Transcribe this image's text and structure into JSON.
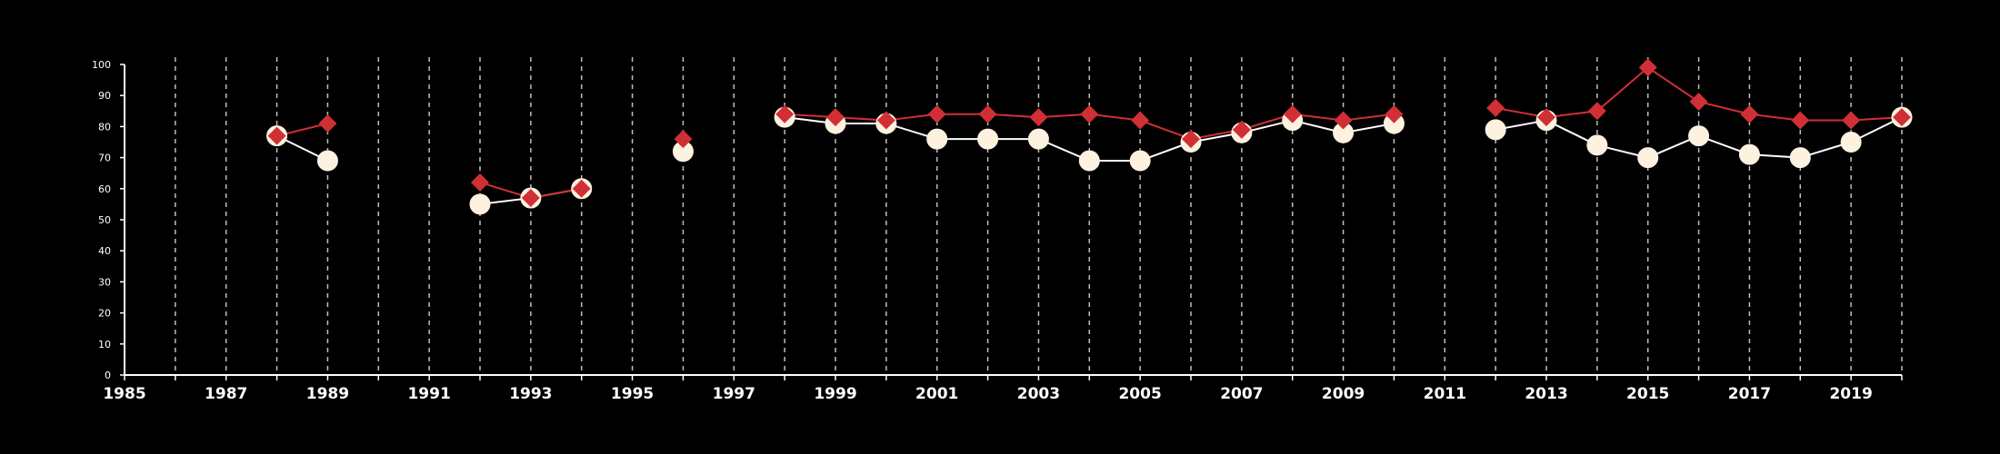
{
  "chart_data": {
    "type": "line",
    "title": "",
    "xlabel": "",
    "ylabel": "",
    "xlim": [
      1985,
      2020
    ],
    "ylim": [
      0,
      100
    ],
    "x_ticks": [
      1985,
      1987,
      1989,
      1991,
      1993,
      1995,
      1997,
      1999,
      2001,
      2003,
      2005,
      2007,
      2009,
      2011,
      2013,
      2015,
      2017,
      2019
    ],
    "x_tick_labels": [
      "1985",
      "1987",
      "1989",
      "1991",
      "1993",
      "1995",
      "1997",
      "1999",
      "2001",
      "2003",
      "2005",
      "2007",
      "2009",
      "2011",
      "2013",
      "2015",
      "2017",
      "2019"
    ],
    "y_ticks": [
      0,
      10,
      20,
      30,
      40,
      50,
      60,
      70,
      80,
      90,
      100
    ],
    "y_tick_labels": [
      "0",
      "10",
      "20",
      "30",
      "40",
      "50",
      "60",
      "70",
      "80",
      "90",
      "100"
    ],
    "vertical_gridlines_every_year": true,
    "background_color": "#000000",
    "series": [
      {
        "marker": "circle",
        "color": "#fdf1df",
        "line_color": "#ffffff",
        "x": [
          1988,
          1989,
          1992,
          1993,
          1994,
          1996,
          1998,
          1999,
          2000,
          2001,
          2002,
          2003,
          2004,
          2005,
          2006,
          2007,
          2008,
          2009,
          2010,
          2012,
          2013,
          2014,
          2015,
          2016,
          2017,
          2018,
          2019,
          2020
        ],
        "y": [
          77,
          69,
          55,
          57,
          60,
          72,
          83,
          81,
          81,
          76,
          76,
          76,
          69,
          69,
          75,
          78,
          82,
          78,
          81,
          79,
          82,
          74,
          70,
          77,
          71,
          70,
          75,
          83
        ]
      },
      {
        "marker": "diamond",
        "color": "#d03035",
        "line_color": "#d03035",
        "x": [
          1988,
          1989,
          1992,
          1993,
          1994,
          1996,
          1998,
          1999,
          2000,
          2001,
          2002,
          2003,
          2004,
          2005,
          2006,
          2007,
          2008,
          2009,
          2010,
          2012,
          2013,
          2014,
          2015,
          2016,
          2017,
          2018,
          2019,
          2020
        ],
        "y": [
          77,
          81,
          62,
          57,
          60,
          76,
          84,
          83,
          82,
          84,
          84,
          83,
          84,
          82,
          76,
          79,
          84,
          82,
          84,
          86,
          83,
          85,
          99,
          88,
          84,
          82,
          82,
          83
        ]
      }
    ]
  }
}
